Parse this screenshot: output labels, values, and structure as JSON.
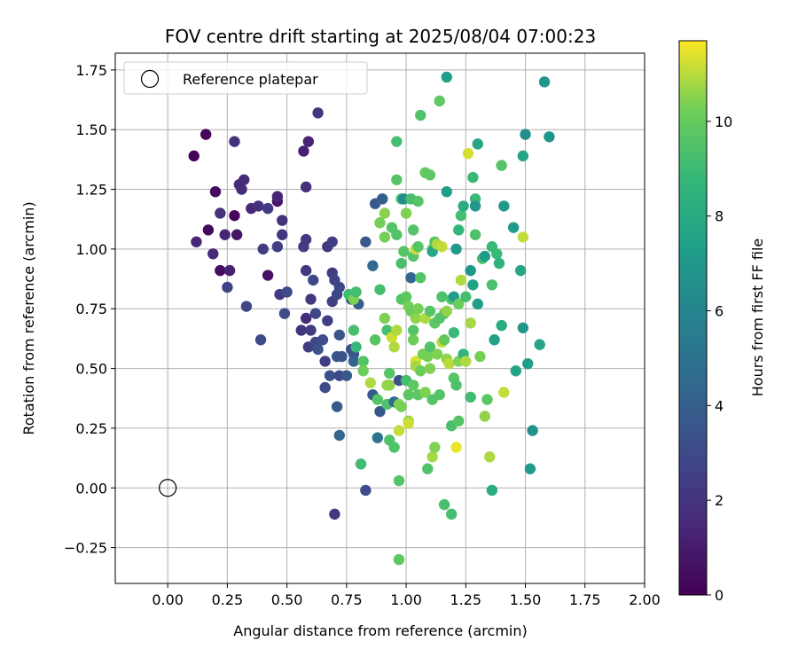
{
  "chart_data": {
    "type": "scatter",
    "title": "FOV centre drift starting at 2025/08/04 07:00:23",
    "xlabel": "Angular distance from reference (arcmin)",
    "ylabel": "Rotation from reference (arcmin)",
    "xlim": [
      -0.22,
      2.0
    ],
    "ylim": [
      -0.4,
      1.82
    ],
    "xticks": [
      0.0,
      0.25,
      0.5,
      0.75,
      1.0,
      1.25,
      1.5,
      1.75,
      2.0
    ],
    "yticks": [
      -0.25,
      0.0,
      0.25,
      0.5,
      0.75,
      1.0,
      1.25,
      1.5,
      1.75
    ],
    "xtick_labels": [
      "0.00",
      "0.25",
      "0.50",
      "0.75",
      "1.00",
      "1.25",
      "1.50",
      "1.75",
      "2.00"
    ],
    "ytick_labels": [
      "−0.25",
      "0.00",
      "0.25",
      "0.50",
      "0.75",
      "1.00",
      "1.25",
      "1.50",
      "1.75"
    ],
    "grid": true,
    "legend": {
      "placement": "top-left",
      "entries": [
        "Reference platepar"
      ]
    },
    "reference_point": {
      "x": 0.0,
      "y": 0.0
    },
    "colorbar": {
      "label": "Hours from first FF file",
      "min": 0,
      "max": 11.7,
      "ticks": [
        0,
        2,
        4,
        6,
        8,
        10
      ],
      "tick_labels": [
        "0",
        "2",
        "4",
        "6",
        "8",
        "10"
      ],
      "colormap": "viridis"
    },
    "points": [
      [
        0.11,
        1.39,
        0.2
      ],
      [
        0.16,
        1.48,
        0.2
      ],
      [
        0.17,
        1.08,
        0.3
      ],
      [
        0.19,
        0.98,
        1.6
      ],
      [
        0.12,
        1.03,
        1.4
      ],
      [
        0.2,
        1.24,
        0.4
      ],
      [
        0.22,
        1.15,
        1.9
      ],
      [
        0.22,
        0.91,
        0.4
      ],
      [
        0.24,
        1.06,
        1.4
      ],
      [
        0.25,
        0.84,
        2.6
      ],
      [
        0.26,
        0.91,
        1.2
      ],
      [
        0.28,
        1.14,
        0.2
      ],
      [
        0.28,
        1.45,
        1.9
      ],
      [
        0.29,
        1.06,
        0.7
      ],
      [
        0.3,
        1.27,
        1.7
      ],
      [
        0.31,
        1.25,
        1.6
      ],
      [
        0.32,
        1.29,
        1.6
      ],
      [
        0.33,
        0.76,
        2.7
      ],
      [
        0.35,
        1.17,
        1.5
      ],
      [
        0.38,
        1.18,
        1.9
      ],
      [
        0.39,
        0.62,
        3.0
      ],
      [
        0.4,
        1.0,
        2.4
      ],
      [
        0.42,
        1.17,
        2.3
      ],
      [
        0.42,
        0.89,
        0.6
      ],
      [
        0.46,
        1.2,
        0.7
      ],
      [
        0.46,
        1.22,
        1.4
      ],
      [
        0.46,
        1.01,
        2.5
      ],
      [
        0.47,
        0.81,
        2.3
      ],
      [
        0.48,
        1.12,
        1.9
      ],
      [
        0.48,
        1.06,
        2.1
      ],
      [
        0.49,
        0.73,
        3.1
      ],
      [
        0.5,
        0.82,
        3.0
      ],
      [
        0.56,
        0.66,
        2.0
      ],
      [
        0.57,
        1.41,
        1.2
      ],
      [
        0.57,
        1.01,
        2.4
      ],
      [
        0.58,
        0.71,
        1.7
      ],
      [
        0.58,
        0.91,
        2.2
      ],
      [
        0.59,
        1.45,
        1.3
      ],
      [
        0.58,
        1.26,
        1.9
      ],
      [
        0.58,
        1.04,
        2.3
      ],
      [
        0.59,
        0.59,
        2.5
      ],
      [
        0.6,
        0.79,
        2.2
      ],
      [
        0.6,
        0.66,
        2.4
      ],
      [
        0.61,
        0.87,
        2.9
      ],
      [
        0.62,
        0.73,
        2.9
      ],
      [
        0.62,
        0.61,
        2.8
      ],
      [
        0.63,
        1.57,
        2.1
      ],
      [
        0.63,
        0.58,
        3.5
      ],
      [
        0.65,
        0.62,
        3.2
      ],
      [
        0.66,
        0.53,
        2.5
      ],
      [
        0.66,
        0.42,
        3.0
      ],
      [
        0.67,
        1.01,
        2.1
      ],
      [
        0.67,
        0.7,
        2.5
      ],
      [
        0.68,
        0.47,
        3.3
      ],
      [
        0.69,
        1.03,
        2.5
      ],
      [
        0.69,
        0.9,
        2.4
      ],
      [
        0.69,
        0.78,
        2.5
      ],
      [
        0.7,
        0.87,
        2.7
      ],
      [
        0.71,
        0.55,
        3.6
      ],
      [
        0.71,
        0.34,
        3.7
      ],
      [
        0.71,
        0.81,
        2.8
      ],
      [
        0.72,
        0.84,
        2.9
      ],
      [
        0.72,
        0.64,
        3.5
      ],
      [
        0.72,
        0.47,
        2.9
      ],
      [
        0.72,
        0.22,
        4.3
      ],
      [
        0.7,
        -0.11,
        2.2
      ],
      [
        0.73,
        0.55,
        3.4
      ],
      [
        0.75,
        0.47,
        3.6
      ],
      [
        0.77,
        0.79,
        3.4
      ],
      [
        0.77,
        0.58,
        3.1
      ],
      [
        0.78,
        0.56,
        3.5
      ],
      [
        0.78,
        0.53,
        4.1
      ],
      [
        0.8,
        0.77,
        3.9
      ],
      [
        0.76,
        0.81,
        9.0
      ],
      [
        0.78,
        0.79,
        10.4
      ],
      [
        0.78,
        0.66,
        9.3
      ],
      [
        0.79,
        0.82,
        9.2
      ],
      [
        0.79,
        0.59,
        8.8
      ],
      [
        0.81,
        0.1,
        9.0
      ],
      [
        0.82,
        0.53,
        9.6
      ],
      [
        0.82,
        0.49,
        10.2
      ],
      [
        0.83,
        -0.01,
        3.2
      ],
      [
        0.83,
        1.03,
        3.7
      ],
      [
        0.85,
        0.44,
        10.9
      ],
      [
        0.86,
        0.93,
        4.5
      ],
      [
        0.86,
        0.39,
        3.7
      ],
      [
        0.87,
        0.62,
        9.6
      ],
      [
        0.87,
        1.19,
        3.7
      ],
      [
        0.88,
        0.21,
        5.1
      ],
      [
        0.88,
        0.37,
        9.6
      ],
      [
        0.89,
        0.32,
        3.6
      ],
      [
        0.89,
        0.83,
        9.2
      ],
      [
        0.89,
        1.11,
        10.3
      ],
      [
        0.9,
        1.21,
        9.3
      ],
      [
        0.9,
        1.21,
        4.0
      ],
      [
        0.91,
        1.15,
        10.5
      ],
      [
        0.91,
        1.05,
        10.3
      ],
      [
        0.91,
        0.71,
        10.4
      ],
      [
        0.92,
        0.35,
        9.4
      ],
      [
        0.92,
        0.66,
        9.2
      ],
      [
        0.92,
        0.43,
        10.6
      ],
      [
        0.93,
        0.48,
        9.6
      ],
      [
        0.93,
        0.43,
        10.6
      ],
      [
        0.93,
        0.2,
        9.5
      ],
      [
        0.94,
        0.63,
        11.2
      ],
      [
        0.94,
        1.09,
        9.6
      ],
      [
        0.95,
        0.36,
        4.5
      ],
      [
        0.95,
        0.59,
        10.9
      ],
      [
        0.95,
        0.17,
        9.5
      ],
      [
        0.96,
        1.45,
        9.2
      ],
      [
        0.96,
        1.29,
        9.6
      ],
      [
        0.96,
        1.06,
        9.6
      ],
      [
        0.96,
        0.66,
        10.9
      ],
      [
        0.97,
        0.45,
        3.2
      ],
      [
        0.97,
        0.35,
        10.4
      ],
      [
        0.97,
        0.24,
        11.1
      ],
      [
        0.97,
        0.03,
        9.6
      ],
      [
        0.97,
        -0.3,
        9.8
      ],
      [
        0.98,
        1.21,
        9.0
      ],
      [
        0.98,
        0.94,
        9.3
      ],
      [
        0.98,
        0.79,
        9.6
      ],
      [
        0.98,
        0.34,
        10.3
      ],
      [
        0.99,
        1.21,
        6.4
      ],
      [
        0.99,
        0.99,
        9.6
      ],
      [
        1.0,
        1.15,
        10.4
      ],
      [
        1.0,
        0.8,
        9.8
      ],
      [
        1.0,
        0.45,
        9.2
      ],
      [
        1.01,
        0.76,
        10.3
      ],
      [
        1.01,
        0.39,
        9.8
      ],
      [
        1.01,
        0.28,
        10.7
      ],
      [
        1.01,
        0.27,
        11.2
      ],
      [
        1.02,
        1.21,
        9.2
      ],
      [
        1.02,
        0.88,
        4.3
      ],
      [
        1.02,
        0.74,
        10.1
      ],
      [
        1.03,
        1.08,
        9.6
      ],
      [
        1.03,
        0.97,
        9.6
      ],
      [
        1.03,
        0.66,
        9.6
      ],
      [
        1.03,
        0.62,
        10.2
      ],
      [
        1.03,
        0.43,
        9.8
      ],
      [
        1.04,
        1.0,
        11.2
      ],
      [
        1.04,
        0.71,
        10.6
      ],
      [
        1.04,
        0.53,
        11.3
      ],
      [
        1.04,
        0.51,
        10.8
      ],
      [
        1.05,
        1.2,
        9.6
      ],
      [
        1.05,
        1.01,
        9.6
      ],
      [
        1.05,
        0.75,
        10.3
      ],
      [
        1.05,
        0.39,
        9.8
      ],
      [
        1.06,
        1.56,
        9.5
      ],
      [
        1.06,
        0.88,
        9.6
      ],
      [
        1.06,
        0.49,
        10.2
      ],
      [
        1.07,
        0.56,
        10.3
      ],
      [
        1.08,
        0.71,
        10.9
      ],
      [
        1.08,
        1.32,
        9.9
      ],
      [
        1.08,
        0.4,
        10.4
      ],
      [
        1.09,
        0.55,
        10.3
      ],
      [
        1.09,
        0.08,
        9.5
      ],
      [
        1.1,
        1.31,
        9.8
      ],
      [
        1.1,
        0.74,
        9.6
      ],
      [
        1.1,
        0.59,
        9.5
      ],
      [
        1.1,
        0.5,
        10.4
      ],
      [
        1.11,
        1.0,
        10.1
      ],
      [
        1.11,
        0.99,
        7.8
      ],
      [
        1.11,
        0.37,
        9.6
      ],
      [
        1.11,
        0.13,
        10.8
      ],
      [
        1.12,
        1.03,
        9.6
      ],
      [
        1.12,
        0.69,
        9.8
      ],
      [
        1.12,
        0.17,
        10.4
      ],
      [
        1.13,
        1.02,
        10.9
      ],
      [
        1.13,
        0.56,
        10.4
      ],
      [
        1.14,
        1.62,
        9.9
      ],
      [
        1.14,
        0.71,
        9.6
      ],
      [
        1.14,
        0.39,
        9.6
      ],
      [
        1.15,
        1.01,
        11.1
      ],
      [
        1.15,
        0.8,
        9.4
      ],
      [
        1.15,
        0.61,
        11.1
      ],
      [
        1.16,
        0.73,
        9.6
      ],
      [
        1.16,
        0.62,
        9.9
      ],
      [
        1.16,
        -0.07,
        9.3
      ],
      [
        1.17,
        1.72,
        7.4
      ],
      [
        1.17,
        1.24,
        7.4
      ],
      [
        1.17,
        0.74,
        10.6
      ],
      [
        1.17,
        0.54,
        10.6
      ],
      [
        1.18,
        0.52,
        11.0
      ],
      [
        1.19,
        0.79,
        9.5
      ],
      [
        1.19,
        0.26,
        9.3
      ],
      [
        1.19,
        -0.11,
        9.2
      ],
      [
        1.2,
        0.8,
        7.2
      ],
      [
        1.2,
        0.65,
        8.9
      ],
      [
        1.2,
        0.46,
        9.6
      ],
      [
        1.21,
        1.0,
        7.1
      ],
      [
        1.21,
        0.43,
        9.4
      ],
      [
        1.21,
        0.17,
        11.5
      ],
      [
        1.22,
        1.08,
        8.7
      ],
      [
        1.22,
        0.77,
        10.1
      ],
      [
        1.22,
        0.53,
        10.4
      ],
      [
        1.22,
        0.28,
        9.6
      ],
      [
        1.23,
        1.14,
        9.2
      ],
      [
        1.23,
        0.87,
        10.9
      ],
      [
        1.24,
        1.18,
        8.1
      ],
      [
        1.24,
        0.56,
        8.6
      ],
      [
        1.25,
        0.8,
        9.2
      ],
      [
        1.25,
        0.53,
        10.9
      ],
      [
        1.26,
        1.4,
        11.3
      ],
      [
        1.27,
        0.91,
        6.9
      ],
      [
        1.27,
        0.69,
        10.8
      ],
      [
        1.27,
        0.38,
        9.1
      ],
      [
        1.28,
        1.3,
        8.9
      ],
      [
        1.28,
        0.85,
        7.6
      ],
      [
        1.29,
        1.21,
        8.9
      ],
      [
        1.29,
        1.06,
        9.4
      ],
      [
        1.29,
        1.18,
        6.9
      ],
      [
        1.3,
        1.44,
        7.8
      ],
      [
        1.3,
        0.77,
        7.2
      ],
      [
        1.31,
        0.55,
        10.3
      ],
      [
        1.32,
        0.96,
        9.3
      ],
      [
        1.33,
        0.97,
        7.1
      ],
      [
        1.33,
        0.3,
        10.6
      ],
      [
        1.34,
        0.37,
        9.7
      ],
      [
        1.35,
        0.13,
        10.9
      ],
      [
        1.36,
        -0.01,
        8.1
      ],
      [
        1.36,
        0.85,
        9.4
      ],
      [
        1.36,
        1.01,
        8.9
      ],
      [
        1.37,
        0.62,
        7.5
      ],
      [
        1.38,
        0.98,
        8.9
      ],
      [
        1.39,
        0.94,
        8.5
      ],
      [
        1.4,
        0.68,
        8.1
      ],
      [
        1.4,
        1.35,
        9.6
      ],
      [
        1.41,
        0.4,
        11.1
      ],
      [
        1.41,
        1.18,
        7.1
      ],
      [
        1.45,
        1.09,
        7.1
      ],
      [
        1.46,
        0.49,
        7.7
      ],
      [
        1.48,
        0.91,
        7.8
      ],
      [
        1.49,
        0.67,
        6.9
      ],
      [
        1.49,
        1.05,
        11.1
      ],
      [
        1.49,
        1.39,
        7.7
      ],
      [
        1.5,
        1.48,
        6.5
      ],
      [
        1.51,
        0.52,
        7.4
      ],
      [
        1.52,
        0.08,
        7.1
      ],
      [
        1.53,
        0.24,
        6.6
      ],
      [
        1.56,
        0.6,
        7.7
      ],
      [
        1.58,
        1.7,
        6.9
      ],
      [
        1.6,
        1.47,
        6.9
      ]
    ]
  }
}
